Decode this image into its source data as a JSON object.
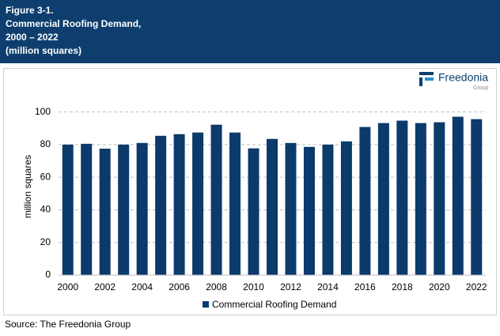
{
  "header": {
    "figure": "Figure 3-1.",
    "title": "Commercial Roofing Demand,",
    "period": "2000 – 2022",
    "units": "(million squares)"
  },
  "logo": {
    "name": "Freedonia",
    "sub": "Group"
  },
  "source": "Source: The Freedonia Group",
  "chart_data": {
    "type": "bar",
    "y_label": "million squares",
    "categories": [
      "2000",
      null,
      "2002",
      null,
      "2004",
      null,
      "2006",
      null,
      "2008",
      null,
      "2010",
      null,
      "2012",
      null,
      "2014",
      null,
      "2016",
      null,
      "2018",
      null,
      "2020",
      null,
      "2022"
    ],
    "series": [
      {
        "name": "Commercial Roofing Demand",
        "color": "#0b3a6b",
        "values": [
          80,
          80.5,
          77.5,
          80,
          81,
          85.4,
          86.4,
          87.4,
          92.2,
          87.4,
          77.7,
          83.5,
          81,
          78.6,
          80,
          82,
          90.8,
          93.2,
          94.7,
          93.2,
          93.7,
          97.1,
          95.6
        ]
      }
    ],
    "ylim": [
      0,
      110
    ],
    "yticks": [
      0,
      20,
      40,
      60,
      80,
      100
    ],
    "grid": true,
    "legend": "bottom"
  }
}
